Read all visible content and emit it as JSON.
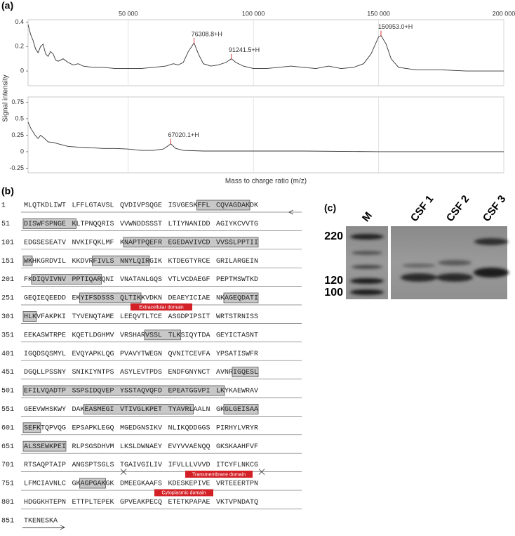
{
  "panel_labels": [
    "(a)",
    "(b)",
    "(c)"
  ],
  "chart_data": [
    {
      "type": "line",
      "y_label": "Signal intensity",
      "x": [
        10000,
        11000,
        12000,
        13000,
        14000,
        15000,
        16000,
        17000,
        18000,
        19000,
        20000,
        21000,
        22000,
        24000,
        26000,
        28000,
        30000,
        32000,
        36000,
        40000,
        45000,
        50000,
        55000,
        60000,
        65000,
        68000,
        70000,
        72000,
        74000,
        76300,
        78000,
        80000,
        83000,
        86000,
        89000,
        91200,
        93000,
        96000,
        100000,
        105000,
        110000,
        115000,
        120000,
        125000,
        130000,
        135000,
        140000,
        144000,
        147000,
        150000,
        151000,
        153000,
        155000,
        158000,
        165000,
        175000,
        185000,
        200000
      ],
      "series": [
        {
          "color": "#333333",
          "values": [
            0.38,
            0.3,
            0.25,
            0.18,
            0.15,
            0.2,
            0.22,
            0.14,
            0.12,
            0.16,
            0.14,
            0.09,
            0.08,
            0.1,
            0.07,
            0.05,
            0.06,
            0.04,
            0.03,
            0.03,
            0.02,
            0.02,
            0.02,
            0.03,
            0.04,
            0.06,
            0.05,
            0.07,
            0.16,
            0.23,
            0.14,
            0.06,
            0.04,
            0.05,
            0.07,
            0.1,
            0.07,
            0.04,
            0.02,
            0.02,
            0.03,
            0.04,
            0.03,
            0.02,
            0.04,
            0.02,
            0.03,
            0.06,
            0.14,
            0.28,
            0.29,
            0.22,
            0.1,
            0.03,
            0.01,
            0.01,
            0,
            0
          ]
        }
      ],
      "xlim": [
        10000,
        200000
      ],
      "xticks": [
        {
          "value": 50000,
          "label": "50 000"
        },
        {
          "value": 100000,
          "label": "100 000"
        },
        {
          "value": 150000,
          "label": "150 000"
        },
        {
          "value": 200000,
          "label": "200 000"
        }
      ],
      "ylim": [
        -0.12,
        0.42
      ],
      "yticks": [
        0,
        0.2,
        0.4
      ],
      "grid": true,
      "annotations": [
        {
          "text": "76308.8+H",
          "x": 76308.8,
          "y": 0.23
        },
        {
          "text": "91241.5+H",
          "x": 91241.5,
          "y": 0.1
        },
        {
          "text": "150953.0+H",
          "x": 150953,
          "y": 0.29
        }
      ],
      "annotation_color": "#d42020"
    },
    {
      "type": "line",
      "x_label": "Mass to charge ratio (m/z)",
      "x": [
        10000,
        11000,
        12000,
        13000,
        14000,
        15000,
        16000,
        18000,
        20000,
        22000,
        26000,
        30000,
        35000,
        40000,
        45000,
        50000,
        55000,
        60000,
        64000,
        66000,
        67000,
        69000,
        72000,
        80000,
        100000,
        120000,
        150000,
        200000
      ],
      "series": [
        {
          "color": "#333333",
          "values": [
            0.45,
            0.36,
            0.3,
            0.24,
            0.2,
            0.25,
            0.22,
            0.15,
            0.14,
            0.12,
            0.08,
            0.07,
            0.06,
            0.05,
            0.05,
            0.04,
            0.02,
            0.02,
            0.04,
            0.09,
            0.12,
            0.05,
            0.02,
            0.01,
            0.01,
            0.01,
            0,
            0
          ]
        }
      ],
      "xlim": [
        10000,
        200000
      ],
      "ylim": [
        -0.32,
        0.83
      ],
      "yticks": [
        0.75,
        0.5,
        0.25,
        0,
        -0.25
      ],
      "grid": true,
      "annotations": [
        {
          "text": "67020.1+H",
          "x": 67020.1,
          "y": 0.12
        }
      ],
      "annotation_color": "#d42020"
    }
  ],
  "sequence": {
    "rows": [
      {
        "number": 1,
        "blocks": [
          "MLQTKDLIWT",
          "LFFLGTAVSL",
          "QVDIVPSQGE",
          "ISVGESKFFL",
          "CQVAGDAKDK"
        ]
      },
      {
        "number": 51,
        "blocks": [
          "DISWFSPNGE",
          "KLTPNQQRIS",
          "VVWNDDSSST",
          "LTIYNANIDD",
          "AGIYKCVVTG"
        ]
      },
      {
        "number": 101,
        "blocks": [
          "EDGSESEATV",
          "NVKIFQKLMF",
          "KNAPTPQEFR",
          "EGEDAVIVCD",
          "VVSSLPPTII"
        ]
      },
      {
        "number": 151,
        "blocks": [
          "WKHKGRDVIL",
          "KKDVRFIVLS",
          "NNYLQIRGIK",
          "KTDEGTYRCE",
          "GRILARGEIN"
        ]
      },
      {
        "number": 201,
        "blocks": [
          "FKDIQVIVNV",
          "PPTIQARQNI",
          "VNATANLGQS",
          "VTLVCDAEGF",
          "PEPTMSWTKD"
        ]
      },
      {
        "number": 251,
        "blocks": [
          "GEQIEQEEDD",
          "EKYIFSDSSS",
          "QLTIKKVDKN",
          "DEAEYICIAE",
          "NKAGEQDATI"
        ]
      },
      {
        "number": 301,
        "blocks": [
          "HLKVFAKPKI",
          "TYVENQTAME",
          "LEEQVTLTCE",
          "ASGDPIPSIT",
          "WRTSTRNISS"
        ]
      },
      {
        "number": 351,
        "blocks": [
          "EEKASWTRPE",
          "KQETLDGHMV",
          "VRSHARVSSL",
          "TLKSIQYTDA",
          "GEYICTASNT"
        ]
      },
      {
        "number": 401,
        "blocks": [
          "IGQDSQSMYL",
          "EVQYAPKLQG",
          "PVAVYTWEGN",
          "QVNITCEVFA",
          "YPSATISWFR"
        ]
      },
      {
        "number": 451,
        "blocks": [
          "DGQLLPSSNY",
          "SNIKIYNTPS",
          "ASYLEVTPDS",
          "ENDFGNYNCT",
          "AVNRIGQESL"
        ]
      },
      {
        "number": 501,
        "blocks": [
          "EFILVQADTP",
          "SSPSIDQVEP",
          "YSSTAQVQFD",
          "EPEATGGVPI",
          "LKYKAEWRAV"
        ]
      },
      {
        "number": 551,
        "blocks": [
          "GEEVWHSKWY",
          "DAKEASMEGI",
          "VTIVGLKPET",
          "TYAVRLAALN",
          "GKGLGEISAA"
        ]
      },
      {
        "number": 601,
        "blocks": [
          "SEFKTQPVQG",
          "EPSAPKLEGQ",
          "MGEDGNSIKV",
          "NLIKQDDGGS",
          "PIRHYLVRYR"
        ]
      },
      {
        "number": 651,
        "blocks": [
          "ALSSEWKPEI",
          "RLPSGSDHVM",
          "LKSLDWNAEY",
          "EVYVVAENQQ",
          "GKSKAAHFVF"
        ]
      },
      {
        "number": 701,
        "blocks": [
          "RTSAQPTAIP",
          "ANGSPTSGLS",
          "TGAIVGILIV",
          "IFVLLLVVVD",
          "ITCYFLNKCG"
        ]
      },
      {
        "number": 751,
        "blocks": [
          "LFMCIAVNLC",
          "GKAGPGAKGK",
          "DMEEGKAAFS",
          "KDESKEPIVE",
          "VRTEEERTPN"
        ]
      },
      {
        "number": 801,
        "blocks": [
          "HDGGKHTEPN",
          "ETTPLTEPEK",
          "GPVEAKPECQ",
          "ETETKPAPAE",
          "VKTVPNDATQ"
        ]
      },
      {
        "number": 851,
        "blocks": [
          "TKENESKA"
        ]
      }
    ],
    "domains": [
      "Extracellular domain",
      "Transmembrane domain",
      "Cytoplasmic domain"
    ]
  },
  "gel": {
    "lanes": [
      "M",
      "CSF 1",
      "CSF 2",
      "CSF 3"
    ],
    "markers": [
      220,
      120,
      100
    ]
  }
}
